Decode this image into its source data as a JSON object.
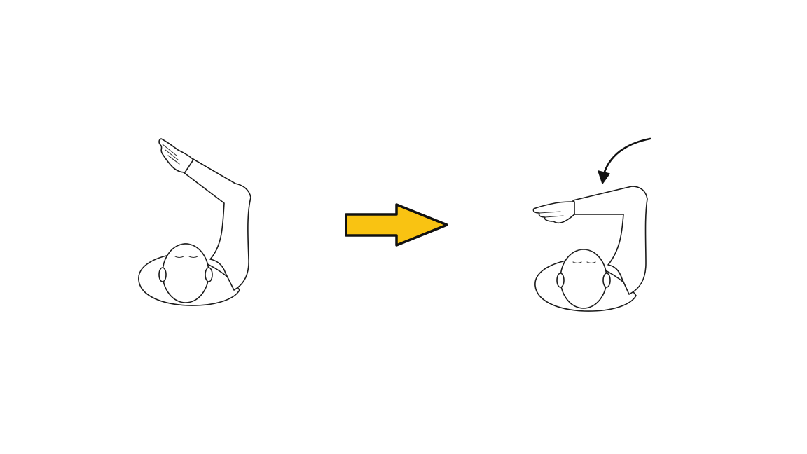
{
  "figures": [
    {
      "icon": "person-top-view-arm-raised-icon",
      "state": "start"
    },
    {
      "icon": "person-top-view-arm-horizontal-icon",
      "state": "end"
    }
  ],
  "transition_arrow": {
    "icon": "right-arrow-icon",
    "color": "#F9C312",
    "outline": "#111111"
  },
  "motion_arrow": {
    "icon": "curved-arrow-icon",
    "color": "#111111"
  }
}
